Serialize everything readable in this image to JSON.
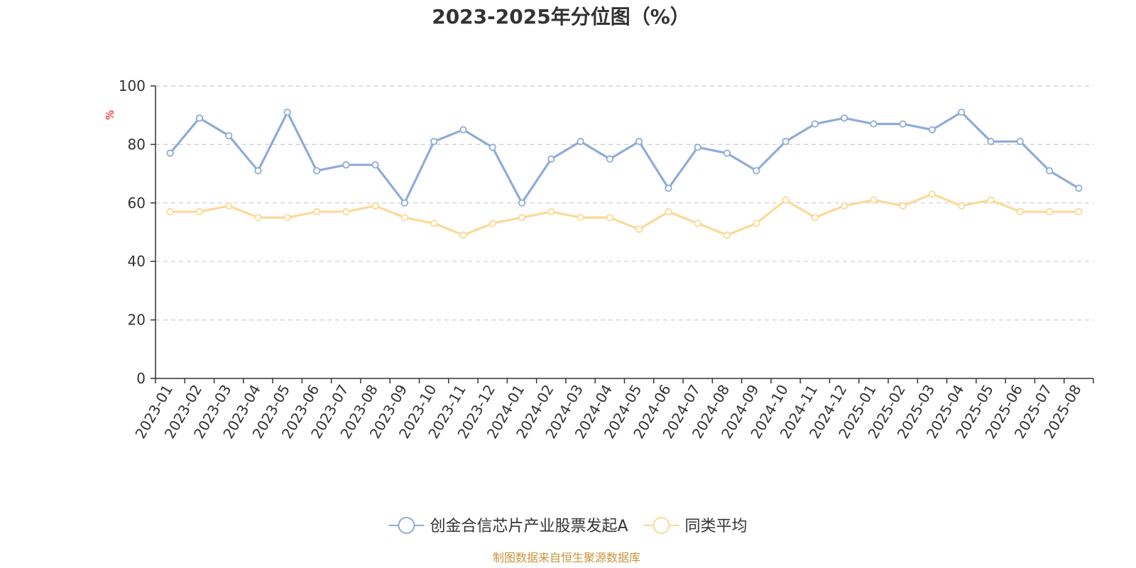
{
  "chart_data": {
    "type": "line",
    "title": "2023-2025年分位图（%）",
    "ylabel": "%",
    "ylim": [
      0,
      100
    ],
    "yticks": [
      0,
      20,
      40,
      60,
      80,
      100
    ],
    "grid": true,
    "legend_position": "bottom",
    "categories": [
      "2023-01",
      "2023-02",
      "2023-03",
      "2023-04",
      "2023-05",
      "2023-06",
      "2023-07",
      "2023-08",
      "2023-09",
      "2023-10",
      "2023-11",
      "2023-12",
      "2024-01",
      "2024-02",
      "2024-03",
      "2024-04",
      "2024-05",
      "2024-06",
      "2024-07",
      "2024-08",
      "2024-09",
      "2024-10",
      "2024-11",
      "2024-12",
      "2025-01",
      "2025-02",
      "2025-03",
      "2025-04",
      "2025-05",
      "2025-06",
      "2025-07",
      "2025-08"
    ],
    "series": [
      {
        "name": "创金合信芯片产业股票发起A",
        "color": "#8eacd8",
        "values": [
          77,
          89,
          83,
          71,
          91,
          71,
          73,
          73,
          60,
          81,
          85,
          79,
          60,
          75,
          81,
          75,
          81,
          65,
          79,
          77,
          71,
          81,
          87,
          89,
          87,
          87,
          85,
          91,
          81,
          81,
          71,
          65
        ]
      },
      {
        "name": "同类平均",
        "color": "#fbd998",
        "values": [
          57,
          57,
          59,
          55,
          55,
          57,
          57,
          59,
          55,
          53,
          49,
          53,
          55,
          57,
          55,
          55,
          51,
          57,
          53,
          49,
          53,
          61,
          55,
          59,
          61,
          59,
          63,
          59,
          61,
          57,
          57,
          57
        ]
      }
    ]
  },
  "footer": {
    "source": "制图数据来自恒生聚源数据库"
  },
  "colors": {
    "axis": "#333333",
    "grid": "#cccccc",
    "source_text": "#c8963c",
    "unit_text": "#ff0000"
  }
}
